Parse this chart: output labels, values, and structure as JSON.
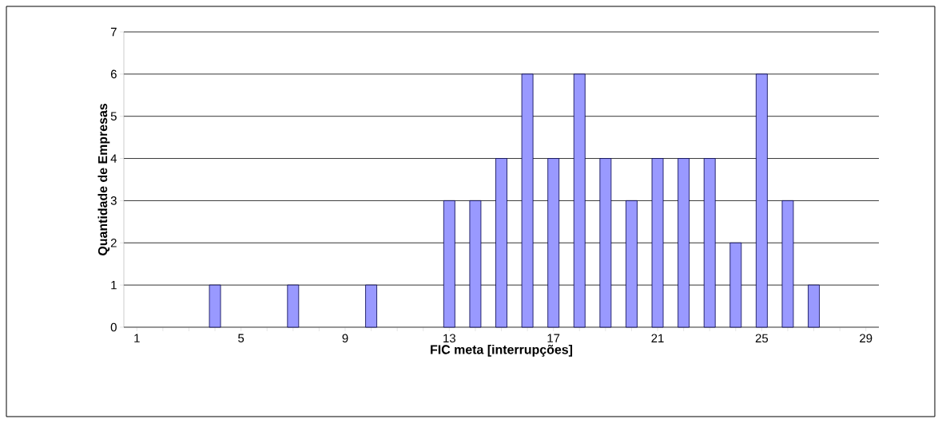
{
  "chart_data": {
    "type": "bar",
    "xlabel": "FIC meta [interrupções]",
    "ylabel": "Quantidade de Empresas",
    "categories": [
      "1",
      null,
      null,
      null,
      "5",
      null,
      null,
      null,
      "9",
      null,
      null,
      null,
      "13",
      null,
      null,
      null,
      "17",
      null,
      null,
      null,
      "21",
      null,
      null,
      null,
      "25",
      null,
      null,
      null,
      "29"
    ],
    "values": [
      0,
      0,
      0,
      1,
      0,
      0,
      1,
      0,
      0,
      1,
      0,
      0,
      3,
      3,
      4,
      6,
      4,
      6,
      4,
      3,
      4,
      4,
      4,
      2,
      6,
      3,
      1,
      0,
      0
    ],
    "color": "#9999ff",
    "ylim": [
      0,
      7
    ],
    "yticks": [
      0,
      1,
      2,
      3,
      4,
      5,
      6,
      7
    ],
    "grid": "y"
  }
}
